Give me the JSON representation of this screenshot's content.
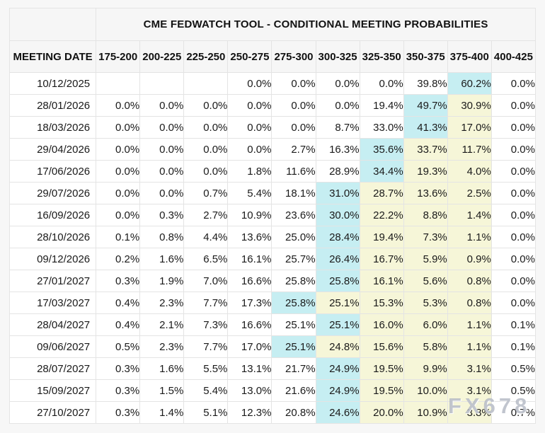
{
  "colors": {
    "max_highlight": "#c6eef2",
    "band_highlight": "#f6f6d8",
    "header_bg": "#f6f6f6",
    "page_bg": "#f7f7f7",
    "border": "#e4e4e4"
  },
  "watermark": {
    "text": "FX678"
  },
  "chart_data": {
    "type": "table",
    "title": "CME FEDWATCH TOOL - CONDITIONAL MEETING PROBABILITIES",
    "columns": [
      "MEETING DATE",
      "175-200",
      "200-225",
      "225-250",
      "250-275",
      "275-300",
      "300-325",
      "325-350",
      "350-375",
      "375-400",
      "400-425"
    ],
    "highlight_meaning": {
      "c": "highest-probability-cell-cyan",
      "y": "band-highlight-yellow"
    },
    "rows": [
      {
        "date": "10/12/2025",
        "values": [
          "",
          "",
          "",
          "0.0%",
          "0.0%",
          "0.0%",
          "0.0%",
          "39.8%",
          "60.2%",
          "0.0%"
        ],
        "highlight": [
          "",
          "",
          "",
          "",
          "",
          "",
          "",
          "",
          "c",
          ""
        ]
      },
      {
        "date": "28/01/2026",
        "values": [
          "0.0%",
          "0.0%",
          "0.0%",
          "0.0%",
          "0.0%",
          "0.0%",
          "19.4%",
          "49.7%",
          "30.9%",
          "0.0%"
        ],
        "highlight": [
          "",
          "",
          "",
          "",
          "",
          "",
          "",
          "c",
          "y",
          ""
        ]
      },
      {
        "date": "18/03/2026",
        "values": [
          "0.0%",
          "0.0%",
          "0.0%",
          "0.0%",
          "0.0%",
          "8.7%",
          "33.0%",
          "41.3%",
          "17.0%",
          "0.0%"
        ],
        "highlight": [
          "",
          "",
          "",
          "",
          "",
          "",
          "",
          "c",
          "y",
          ""
        ]
      },
      {
        "date": "29/04/2026",
        "values": [
          "0.0%",
          "0.0%",
          "0.0%",
          "0.0%",
          "2.7%",
          "16.3%",
          "35.6%",
          "33.7%",
          "11.7%",
          "0.0%"
        ],
        "highlight": [
          "",
          "",
          "",
          "",
          "",
          "",
          "c",
          "y",
          "y",
          ""
        ]
      },
      {
        "date": "17/06/2026",
        "values": [
          "0.0%",
          "0.0%",
          "0.0%",
          "1.8%",
          "11.6%",
          "28.9%",
          "34.4%",
          "19.3%",
          "4.0%",
          "0.0%"
        ],
        "highlight": [
          "",
          "",
          "",
          "",
          "",
          "",
          "c",
          "y",
          "y",
          ""
        ]
      },
      {
        "date": "29/07/2026",
        "values": [
          "0.0%",
          "0.0%",
          "0.7%",
          "5.4%",
          "18.1%",
          "31.0%",
          "28.7%",
          "13.6%",
          "2.5%",
          "0.0%"
        ],
        "highlight": [
          "",
          "",
          "",
          "",
          "",
          "c",
          "y",
          "y",
          "y",
          ""
        ]
      },
      {
        "date": "16/09/2026",
        "values": [
          "0.0%",
          "0.3%",
          "2.7%",
          "10.9%",
          "23.6%",
          "30.0%",
          "22.2%",
          "8.8%",
          "1.4%",
          "0.0%"
        ],
        "highlight": [
          "",
          "",
          "",
          "",
          "",
          "c",
          "y",
          "y",
          "y",
          ""
        ]
      },
      {
        "date": "28/10/2026",
        "values": [
          "0.1%",
          "0.8%",
          "4.4%",
          "13.6%",
          "25.0%",
          "28.4%",
          "19.4%",
          "7.3%",
          "1.1%",
          "0.0%"
        ],
        "highlight": [
          "",
          "",
          "",
          "",
          "",
          "c",
          "y",
          "y",
          "y",
          ""
        ]
      },
      {
        "date": "09/12/2026",
        "values": [
          "0.2%",
          "1.6%",
          "6.5%",
          "16.1%",
          "25.7%",
          "26.4%",
          "16.7%",
          "5.9%",
          "0.9%",
          "0.0%"
        ],
        "highlight": [
          "",
          "",
          "",
          "",
          "",
          "c",
          "y",
          "y",
          "y",
          ""
        ]
      },
      {
        "date": "27/01/2027",
        "values": [
          "0.3%",
          "1.9%",
          "7.0%",
          "16.6%",
          "25.8%",
          "25.8%",
          "16.1%",
          "5.6%",
          "0.8%",
          "0.0%"
        ],
        "highlight": [
          "",
          "",
          "",
          "",
          "",
          "c",
          "y",
          "y",
          "y",
          ""
        ]
      },
      {
        "date": "17/03/2027",
        "values": [
          "0.4%",
          "2.3%",
          "7.7%",
          "17.3%",
          "25.8%",
          "25.1%",
          "15.3%",
          "5.3%",
          "0.8%",
          "0.0%"
        ],
        "highlight": [
          "",
          "",
          "",
          "",
          "c",
          "y",
          "y",
          "y",
          "y",
          ""
        ]
      },
      {
        "date": "28/04/2027",
        "values": [
          "0.4%",
          "2.1%",
          "7.3%",
          "16.6%",
          "25.1%",
          "25.1%",
          "16.0%",
          "6.0%",
          "1.1%",
          "0.1%"
        ],
        "highlight": [
          "",
          "",
          "",
          "",
          "",
          "c",
          "y",
          "y",
          "y",
          ""
        ]
      },
      {
        "date": "09/06/2027",
        "values": [
          "0.5%",
          "2.3%",
          "7.7%",
          "17.0%",
          "25.1%",
          "24.8%",
          "15.6%",
          "5.8%",
          "1.1%",
          "0.1%"
        ],
        "highlight": [
          "",
          "",
          "",
          "",
          "c",
          "y",
          "y",
          "y",
          "y",
          ""
        ]
      },
      {
        "date": "28/07/2027",
        "values": [
          "0.3%",
          "1.6%",
          "5.5%",
          "13.1%",
          "21.7%",
          "24.9%",
          "19.5%",
          "9.9%",
          "3.1%",
          "0.5%"
        ],
        "highlight": [
          "",
          "",
          "",
          "",
          "",
          "c",
          "y",
          "y",
          "y",
          ""
        ]
      },
      {
        "date": "15/09/2027",
        "values": [
          "0.3%",
          "1.5%",
          "5.4%",
          "13.0%",
          "21.6%",
          "24.9%",
          "19.5%",
          "10.0%",
          "3.1%",
          "0.5%"
        ],
        "highlight": [
          "",
          "",
          "",
          "",
          "",
          "c",
          "y",
          "y",
          "y",
          ""
        ]
      },
      {
        "date": "27/10/2027",
        "values": [
          "0.3%",
          "1.4%",
          "5.1%",
          "12.3%",
          "20.8%",
          "24.6%",
          "20.0%",
          "10.9%",
          "3.8%",
          "0.7%"
        ],
        "highlight": [
          "",
          "",
          "",
          "",
          "",
          "c",
          "y",
          "y",
          "y",
          ""
        ]
      }
    ]
  }
}
